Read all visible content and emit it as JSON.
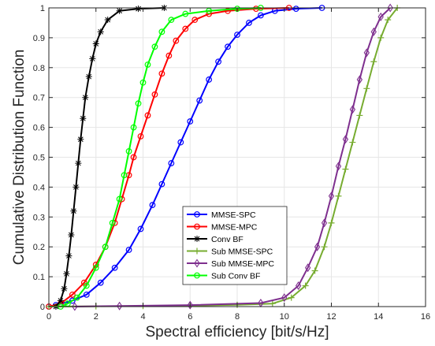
{
  "chart_data": {
    "type": "line",
    "xlabel": "Spectral efficiency [bit/s/Hz]",
    "ylabel": "Cumulative Distribution Function",
    "xlim": [
      0,
      16
    ],
    "ylim": [
      0,
      1
    ],
    "xticks": [
      "0",
      "2",
      "4",
      "6",
      "8",
      "10",
      "12",
      "14",
      "16"
    ],
    "yticks": [
      "0",
      "0.1",
      "0.2",
      "0.3",
      "0.4",
      "0.5",
      "0.6",
      "0.7",
      "0.8",
      "0.9",
      "1"
    ],
    "grid": true,
    "legend_position": "lower-center",
    "series": [
      {
        "name": "MMSE-SPC",
        "color": "#0000ff",
        "marker": "circle",
        "points": [
          [
            0,
            0
          ],
          [
            0.3,
            0.005
          ],
          [
            1.0,
            0.02
          ],
          [
            1.6,
            0.04
          ],
          [
            2.2,
            0.08
          ],
          [
            2.8,
            0.13
          ],
          [
            3.4,
            0.19
          ],
          [
            3.9,
            0.26
          ],
          [
            4.4,
            0.34
          ],
          [
            4.8,
            0.41
          ],
          [
            5.2,
            0.48
          ],
          [
            5.6,
            0.55
          ],
          [
            6.0,
            0.62
          ],
          [
            6.4,
            0.69
          ],
          [
            6.8,
            0.76
          ],
          [
            7.2,
            0.82
          ],
          [
            7.6,
            0.87
          ],
          [
            8.0,
            0.91
          ],
          [
            8.5,
            0.95
          ],
          [
            9.0,
            0.975
          ],
          [
            9.6,
            0.99
          ],
          [
            10.5,
            0.997
          ],
          [
            11.6,
            1.0
          ]
        ]
      },
      {
        "name": "MMSE-MPC",
        "color": "#ff0000",
        "marker": "circle",
        "points": [
          [
            0,
            0
          ],
          [
            0.5,
            0.01
          ],
          [
            1.0,
            0.04
          ],
          [
            1.5,
            0.08
          ],
          [
            2.0,
            0.14
          ],
          [
            2.4,
            0.2
          ],
          [
            2.8,
            0.28
          ],
          [
            3.1,
            0.36
          ],
          [
            3.4,
            0.44
          ],
          [
            3.6,
            0.5
          ],
          [
            3.9,
            0.57
          ],
          [
            4.2,
            0.64
          ],
          [
            4.5,
            0.71
          ],
          [
            4.8,
            0.78
          ],
          [
            5.1,
            0.84
          ],
          [
            5.4,
            0.89
          ],
          [
            5.8,
            0.93
          ],
          [
            6.2,
            0.96
          ],
          [
            6.8,
            0.98
          ],
          [
            7.6,
            0.99
          ],
          [
            8.8,
            0.997
          ],
          [
            10.2,
            1.0
          ]
        ]
      },
      {
        "name": "Conv BF",
        "color": "#000000",
        "marker": "asterisk",
        "points": [
          [
            0.3,
            0
          ],
          [
            0.5,
            0.02
          ],
          [
            0.65,
            0.06
          ],
          [
            0.75,
            0.11
          ],
          [
            0.85,
            0.17
          ],
          [
            0.95,
            0.24
          ],
          [
            1.05,
            0.32
          ],
          [
            1.15,
            0.4
          ],
          [
            1.25,
            0.48
          ],
          [
            1.35,
            0.56
          ],
          [
            1.45,
            0.63
          ],
          [
            1.55,
            0.7
          ],
          [
            1.7,
            0.77
          ],
          [
            1.85,
            0.83
          ],
          [
            2.0,
            0.88
          ],
          [
            2.2,
            0.92
          ],
          [
            2.5,
            0.96
          ],
          [
            3.0,
            0.99
          ],
          [
            3.8,
            0.997
          ],
          [
            4.9,
            1.0
          ]
        ]
      },
      {
        "name": "Sub MMSE-SPC",
        "color": "#77ac30",
        "marker": "plus",
        "points": [
          [
            0,
            0
          ],
          [
            2,
            0.001
          ],
          [
            4,
            0.002
          ],
          [
            6,
            0.003
          ],
          [
            8,
            0.006
          ],
          [
            9.5,
            0.01
          ],
          [
            10.3,
            0.03
          ],
          [
            10.9,
            0.07
          ],
          [
            11.3,
            0.12
          ],
          [
            11.7,
            0.2
          ],
          [
            12.0,
            0.28
          ],
          [
            12.3,
            0.37
          ],
          [
            12.6,
            0.46
          ],
          [
            12.9,
            0.55
          ],
          [
            13.2,
            0.64
          ],
          [
            13.5,
            0.73
          ],
          [
            13.8,
            0.82
          ],
          [
            14.1,
            0.9
          ],
          [
            14.4,
            0.96
          ],
          [
            14.8,
            1.0
          ]
        ]
      },
      {
        "name": "Sub MMSE-MPC",
        "color": "#7e2f8e",
        "marker": "diamond",
        "points": [
          [
            1.1,
            0
          ],
          [
            3,
            0.002
          ],
          [
            6,
            0.005
          ],
          [
            9,
            0.012
          ],
          [
            10.0,
            0.03
          ],
          [
            10.6,
            0.07
          ],
          [
            11.0,
            0.13
          ],
          [
            11.4,
            0.2
          ],
          [
            11.7,
            0.28
          ],
          [
            12.0,
            0.37
          ],
          [
            12.3,
            0.47
          ],
          [
            12.6,
            0.56
          ],
          [
            12.9,
            0.66
          ],
          [
            13.2,
            0.76
          ],
          [
            13.5,
            0.85
          ],
          [
            13.8,
            0.92
          ],
          [
            14.1,
            0.97
          ],
          [
            14.5,
            1.0
          ]
        ]
      },
      {
        "name": "Sub Conv BF",
        "color": "#00ff00",
        "marker": "circle",
        "points": [
          [
            0.5,
            0
          ],
          [
            0.8,
            0.01
          ],
          [
            1.2,
            0.03
          ],
          [
            1.6,
            0.07
          ],
          [
            2.0,
            0.13
          ],
          [
            2.4,
            0.2
          ],
          [
            2.7,
            0.28
          ],
          [
            3.0,
            0.36
          ],
          [
            3.2,
            0.44
          ],
          [
            3.4,
            0.52
          ],
          [
            3.6,
            0.6
          ],
          [
            3.8,
            0.68
          ],
          [
            4.0,
            0.75
          ],
          [
            4.2,
            0.81
          ],
          [
            4.5,
            0.87
          ],
          [
            4.8,
            0.92
          ],
          [
            5.2,
            0.96
          ],
          [
            5.8,
            0.98
          ],
          [
            6.8,
            0.99
          ],
          [
            8.0,
            0.997
          ],
          [
            9.0,
            1.0
          ]
        ]
      }
    ]
  }
}
